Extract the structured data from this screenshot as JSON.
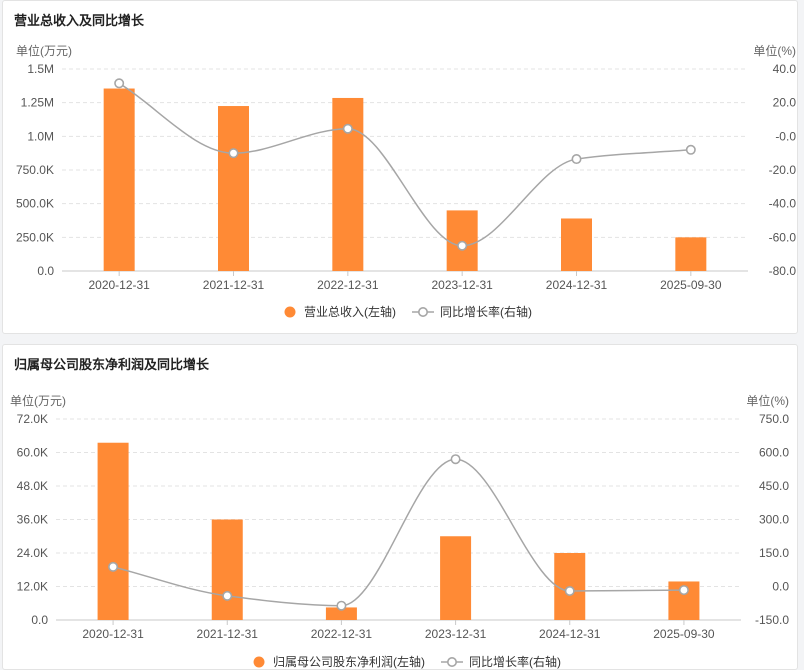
{
  "colors": {
    "bar": "#ff8a35",
    "line": "#a6a6a6",
    "grid": "#e3e3e3",
    "axis": "#c9c9c9"
  },
  "chart_data": [
    {
      "type": "bar",
      "title": "营业总收入及同比增长",
      "left_unit": "单位(万元)",
      "right_unit": "单位(%)",
      "categories": [
        "2020-12-31",
        "2021-12-31",
        "2022-12-31",
        "2023-12-31",
        "2024-12-31",
        "2025-09-30"
      ],
      "y_left": {
        "min": 0,
        "max": 1500000,
        "ticks": [
          0,
          250000,
          500000,
          750000,
          1000000,
          1250000,
          1500000
        ],
        "tick_labels": [
          "0.0",
          "250.0K",
          "500.0K",
          "750.0K",
          "1.0M",
          "1.25M",
          "1.5M"
        ]
      },
      "y_right": {
        "min": -80,
        "max": 40,
        "ticks": [
          -80,
          -60,
          -40,
          -20,
          0,
          20,
          40
        ],
        "tick_labels": [
          "-80.0",
          "-60.0",
          "-40.0",
          "-20.0",
          "-0.0",
          "20.0",
          "40.0"
        ]
      },
      "series": [
        {
          "name": "营业总收入(左轴)",
          "kind": "bar",
          "axis": "left",
          "values": [
            1355000,
            1225000,
            1285000,
            450000,
            390000,
            250000
          ]
        },
        {
          "name": "同比增长率(右轴)",
          "kind": "line",
          "axis": "right",
          "values": [
            31.5,
            -10,
            4.5,
            -65,
            -13.5,
            -8
          ]
        }
      ],
      "grid": true,
      "legend": "bottom-center"
    },
    {
      "type": "bar",
      "title": "归属母公司股东净利润及同比增长",
      "left_unit": "单位(万元)",
      "right_unit": "单位(%)",
      "categories": [
        "2020-12-31",
        "2021-12-31",
        "2022-12-31",
        "2023-12-31",
        "2024-12-31",
        "2025-09-30"
      ],
      "y_left": {
        "min": 0,
        "max": 72000,
        "ticks": [
          0,
          12000,
          24000,
          36000,
          48000,
          60000,
          72000
        ],
        "tick_labels": [
          "0.0",
          "12.0K",
          "24.0K",
          "36.0K",
          "48.0K",
          "60.0K",
          "72.0K"
        ]
      },
      "y_right": {
        "min": -150,
        "max": 750,
        "ticks": [
          -150,
          0,
          150,
          300,
          450,
          600,
          750
        ],
        "tick_labels": [
          "-150.0",
          "0.0",
          "150.0",
          "300.0",
          "450.0",
          "600.0",
          "750.0"
        ]
      },
      "series": [
        {
          "name": "归属母公司股东净利润(左轴)",
          "kind": "bar",
          "axis": "left",
          "values": [
            63500,
            36000,
            4500,
            30000,
            24000,
            13800
          ]
        },
        {
          "name": "同比增长率(右轴)",
          "kind": "line",
          "axis": "right",
          "values": [
            88,
            -42,
            -86,
            570,
            -20,
            -16
          ]
        }
      ],
      "grid": true,
      "legend": "bottom-center"
    }
  ]
}
